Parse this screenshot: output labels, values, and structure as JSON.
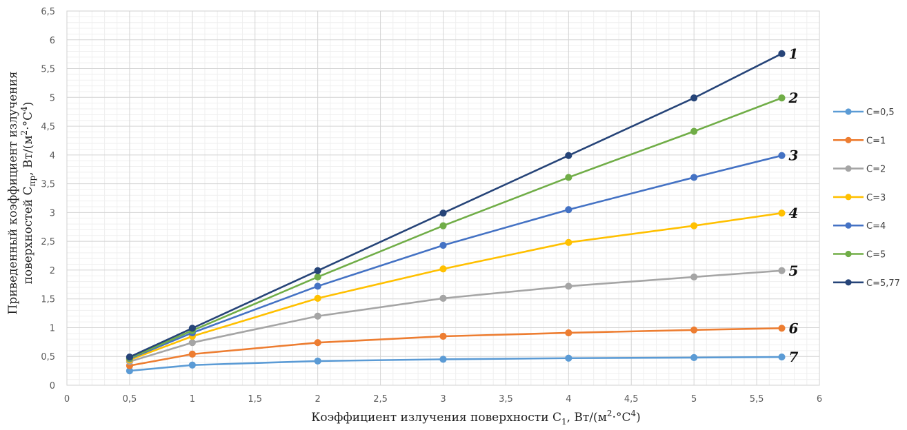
{
  "chart_data": {
    "type": "line",
    "x": [
      0.5,
      1,
      2,
      3,
      4,
      5,
      5.7
    ],
    "xlim": [
      0,
      6
    ],
    "ylim": [
      0,
      6.5
    ],
    "x_ticks": [
      "0",
      "0,5",
      "1",
      "1,5",
      "2",
      "2,5",
      "3",
      "3,5",
      "4",
      "4,5",
      "5",
      "5,5",
      "6"
    ],
    "y_ticks": [
      "0",
      "0,5",
      "1",
      "1,5",
      "2",
      "2,5",
      "3",
      "3,5",
      "4",
      "4,5",
      "5",
      "5,5",
      "6",
      "6,5"
    ],
    "xlabel": "Коэффициент излучения поверхности C1, Вт/(м2·°С4)",
    "ylabel_line1": "Приведенный коэффициент излучения",
    "ylabel_line2": "поверхностей Cпр, Вт/(м2·°С4)",
    "grid": true,
    "legend_position": "right",
    "series": [
      {
        "name": "C=0,5",
        "color": "#5B9BD5",
        "curve_label": "7",
        "values": [
          0.25,
          0.35,
          0.42,
          0.45,
          0.47,
          0.48,
          0.49
        ]
      },
      {
        "name": "C=1",
        "color": "#ED7D31",
        "curve_label": "6",
        "values": [
          0.34,
          0.54,
          0.74,
          0.85,
          0.91,
          0.96,
          0.99
        ]
      },
      {
        "name": "C=2",
        "color": "#A5A5A5",
        "curve_label": "5",
        "values": [
          0.41,
          0.74,
          1.2,
          1.51,
          1.72,
          1.88,
          1.99
        ]
      },
      {
        "name": "C=3",
        "color": "#FFC000",
        "curve_label": "4",
        "values": [
          0.44,
          0.85,
          1.51,
          2.02,
          2.48,
          2.77,
          2.99
        ]
      },
      {
        "name": "C=4",
        "color": "#4472C4",
        "curve_label": "3",
        "values": [
          0.46,
          0.91,
          1.72,
          2.43,
          3.05,
          3.61,
          3.99
        ]
      },
      {
        "name": "C=5",
        "color": "#70AD47",
        "curve_label": "2",
        "values": [
          0.47,
          0.95,
          1.88,
          2.77,
          3.61,
          4.41,
          4.99
        ]
      },
      {
        "name": "C=5,77",
        "color": "#264478",
        "curve_label": "1",
        "values": [
          0.49,
          0.99,
          1.99,
          2.99,
          3.99,
          4.99,
          5.76
        ]
      }
    ]
  }
}
